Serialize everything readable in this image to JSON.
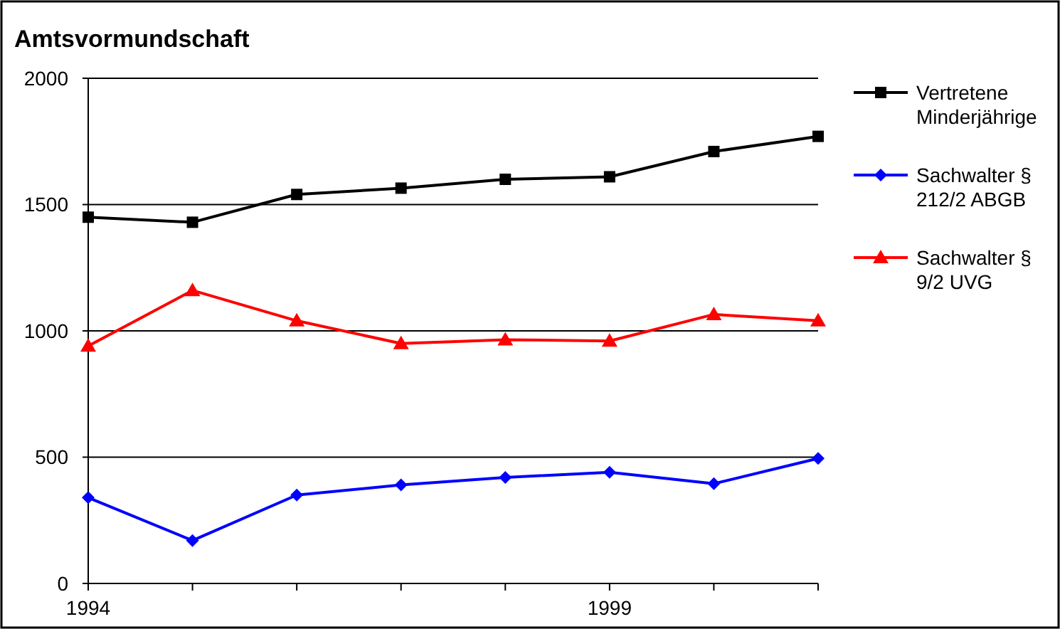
{
  "chart_data": {
    "type": "line",
    "title": "Amtsvormundschaft",
    "x": [
      1994,
      1995,
      1996,
      1997,
      1998,
      1999,
      2000,
      2001
    ],
    "series": [
      {
        "name": "Vertretene Minderjährige",
        "color": "#000000",
        "marker": "square",
        "values": [
          1450,
          1430,
          1540,
          1565,
          1600,
          1610,
          1710,
          1770
        ]
      },
      {
        "name": "Sachwalter § 212/2 ABGB",
        "color": "#0000ff",
        "marker": "diamond",
        "values": [
          340,
          170,
          350,
          390,
          420,
          440,
          395,
          495
        ]
      },
      {
        "name": "Sachwalter § 9/2 UVG",
        "color": "#ff0000",
        "marker": "triangle",
        "values": [
          940,
          1160,
          1040,
          950,
          965,
          960,
          1065,
          1040
        ]
      }
    ],
    "xlim": [
      1994,
      2001
    ],
    "xticks": [
      1994,
      {
        "value": 1995,
        "label": null
      },
      {
        "value": 1996,
        "label": null
      },
      {
        "value": 1997,
        "label": null
      },
      {
        "value": 1998,
        "label": null
      },
      1999,
      {
        "value": 2000,
        "label": null
      },
      {
        "value": 2001,
        "label": null
      }
    ],
    "ylim": [
      0,
      2000
    ],
    "yticks": [
      0,
      500,
      1000,
      1500,
      2000
    ],
    "grid": "y",
    "legend": "right",
    "line_style": "solid"
  }
}
